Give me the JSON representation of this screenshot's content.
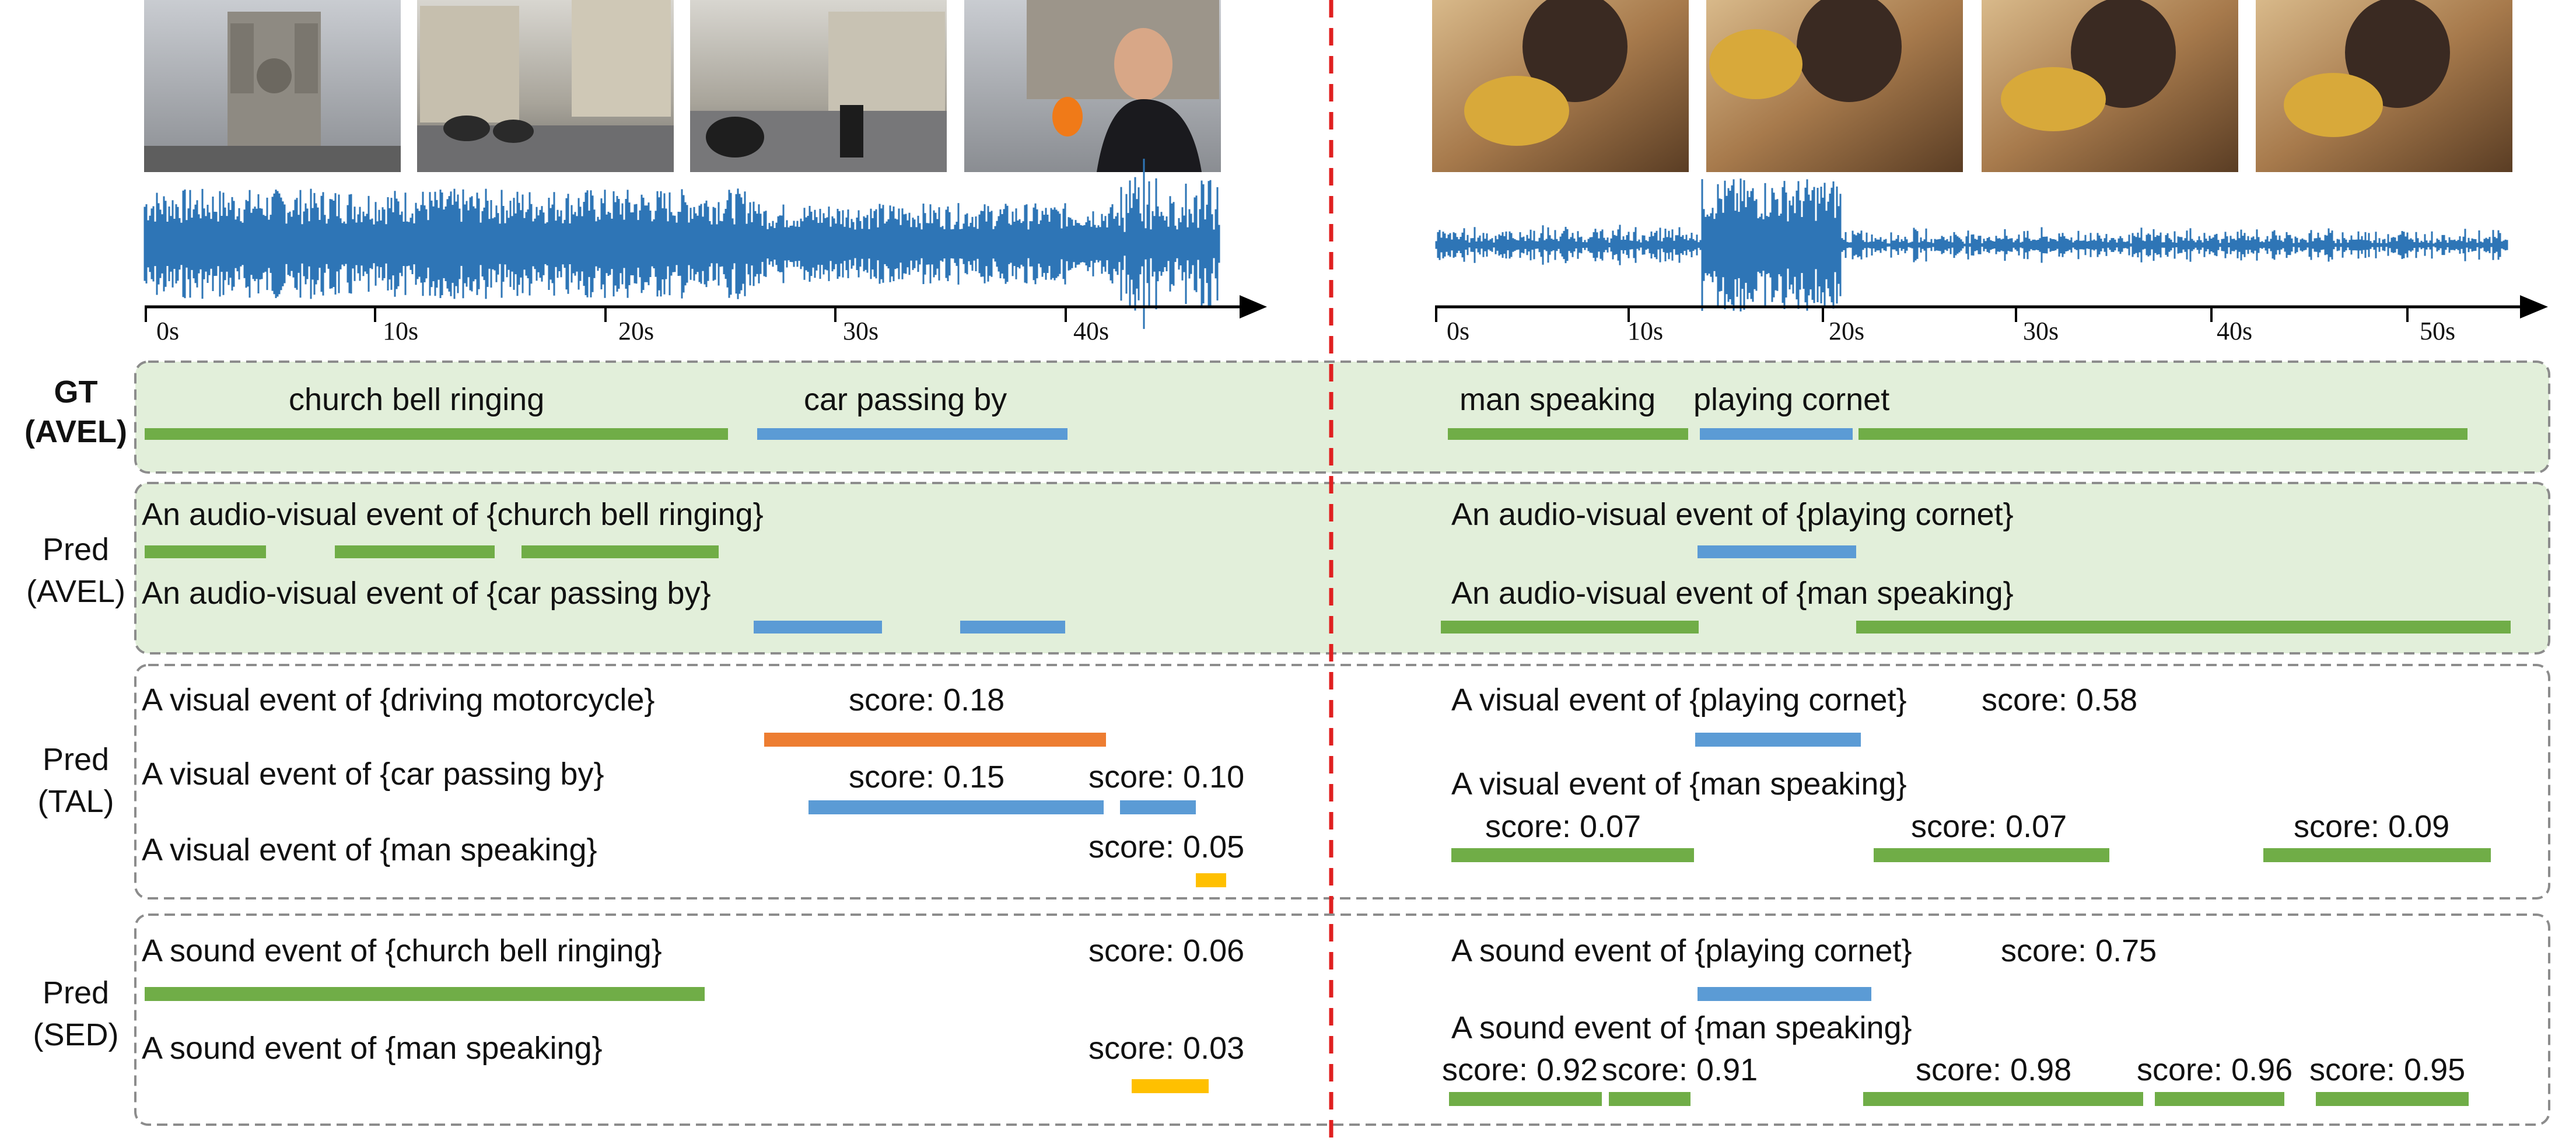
{
  "colors": {
    "green": "#70ad47",
    "blue": "#5b9bd5",
    "orange": "#ed7d31",
    "yellow": "#ffc000",
    "waveform": "#2e75b6",
    "divider": "#e02020",
    "panel_fill": "#e2efda",
    "panel_border": "#8c8c8c"
  },
  "left": {
    "ticks": [
      "0s",
      "10s",
      "20s",
      "30s",
      "40s"
    ],
    "thumbnails": [
      "cathedral-frame",
      "street-motorcycles-frame",
      "motorcycle-rain-frame",
      "priest-interview-frame"
    ]
  },
  "right": {
    "ticks": [
      "0s",
      "10s",
      "20s",
      "30s",
      "40s",
      "50s"
    ],
    "thumbnails": [
      "trumpet-frame-1",
      "trumpet-frame-2",
      "trumpet-frame-3",
      "trumpet-frame-4"
    ]
  },
  "rows": {
    "gt": [
      "GT",
      "(AVEL)"
    ],
    "pred_avel": [
      "Pred",
      "(AVEL)"
    ],
    "pred_tal": [
      "Pred",
      "(TAL)"
    ],
    "pred_sed": [
      "Pred",
      "(SED)"
    ]
  },
  "labels": {
    "gt_l1": "church bell ringing",
    "gt_l2": "car passing by",
    "gt_r1": "man speaking",
    "gt_r2": "playing cornet",
    "avel_l1": "An audio-visual event of {church bell ringing}",
    "avel_l2": "An audio-visual event of {car passing by}",
    "avel_r1": "An audio-visual event of {playing cornet}",
    "avel_r2": "An audio-visual event of {man speaking}",
    "tal_l1": "A visual event of {driving motorcycle}",
    "tal_l2": "A visual event of {car passing by}",
    "tal_l3": "A visual event of {man speaking}",
    "tal_r1": "A visual event of {playing cornet}",
    "tal_r2": "A visual event of {man speaking}",
    "sed_l1": "A sound event of {church bell ringing}",
    "sed_l2": "A sound event of {man speaking}",
    "sed_r1": "A sound event of {playing cornet}",
    "sed_r2": "A sound event of {man speaking}"
  },
  "scores": {
    "tal_l_motorcycle": "score: 0.18",
    "tal_l_car_a": "score: 0.15",
    "tal_l_car_b": "score: 0.10",
    "tal_l_man": "score: 0.05",
    "tal_r_cornet": "score: 0.58",
    "tal_r_man_a": "score: 0.07",
    "tal_r_man_b": "score: 0.07",
    "tal_r_man_c": "score: 0.09",
    "sed_l_bell": "score: 0.06",
    "sed_l_man": "score: 0.03",
    "sed_r_cornet": "score: 0.75",
    "sed_r_man_a": "score: 0.92",
    "sed_r_man_b": "score: 0.91",
    "sed_r_man_c": "score: 0.98",
    "sed_r_man_d": "score: 0.96",
    "sed_r_man_e": "score: 0.95"
  }
}
